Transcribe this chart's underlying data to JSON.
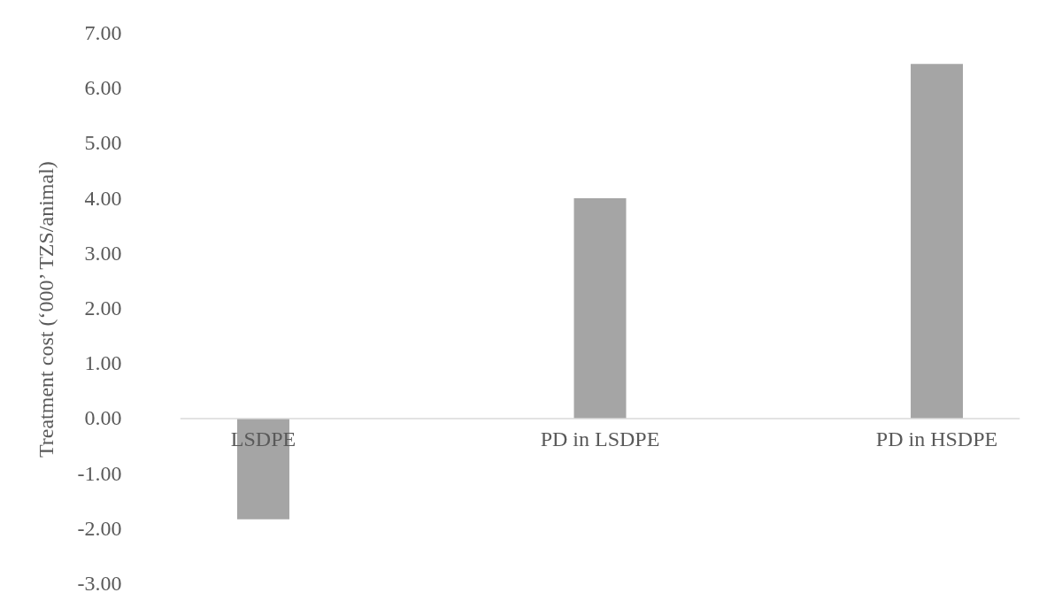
{
  "chart_data": {
    "type": "bar",
    "ylabel": "Treatment cost (‘000’ TZS/animal)",
    "categories": [
      "LSDPE",
      "PD in LSDPE",
      "PD in HSDPE"
    ],
    "values": [
      -1.83,
      4.0,
      6.44
    ],
    "color": "#a5a5a5",
    "ylim": [
      -3,
      7
    ],
    "yticks": [
      {
        "value": -3,
        "label": "-3.00"
      },
      {
        "value": -2,
        "label": "-2.00"
      },
      {
        "value": -1,
        "label": "-1.00"
      },
      {
        "value": 0,
        "label": "0.00"
      },
      {
        "value": 1,
        "label": "1.00"
      },
      {
        "value": 2,
        "label": "2.00"
      },
      {
        "value": 3,
        "label": "3.00"
      },
      {
        "value": 4,
        "label": "4.00"
      },
      {
        "value": 5,
        "label": "5.00"
      },
      {
        "value": 6,
        "label": "6.00"
      },
      {
        "value": 7,
        "label": "7.00"
      }
    ]
  }
}
